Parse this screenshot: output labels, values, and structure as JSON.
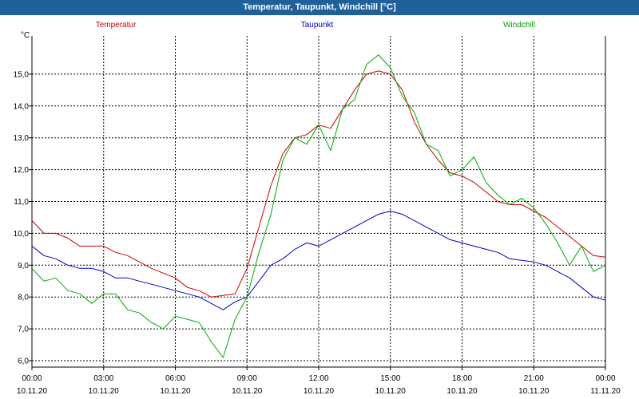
{
  "window": {
    "title": "Temperatur, Taupunkt, Windchill [°C]"
  },
  "chart_data": {
    "type": "line",
    "title": "Temperatur, Taupunkt, Windchill [°C]",
    "ylabel": "°C",
    "xlabel": "",
    "ylim": [
      5.8,
      16.2
    ],
    "xlim": [
      0,
      24
    ],
    "grid": true,
    "y_ticks": [
      "6,0",
      "7,0",
      "8,0",
      "9,0",
      "10,0",
      "11,0",
      "12,0",
      "13,0",
      "14,0",
      "15,0"
    ],
    "x_ticks": [
      {
        "time": "00:00",
        "date": "10.11.20"
      },
      {
        "time": "03:00",
        "date": "10.11.20"
      },
      {
        "time": "06:00",
        "date": "10.11.20"
      },
      {
        "time": "09:00",
        "date": "10.11.20"
      },
      {
        "time": "12:00",
        "date": "10.11.20"
      },
      {
        "time": "15:00",
        "date": "10.11.20"
      },
      {
        "time": "18:00",
        "date": "10.11.20"
      },
      {
        "time": "21:00",
        "date": "10.11.20"
      },
      {
        "time": "00:00",
        "date": "11.11.20"
      }
    ],
    "series": [
      {
        "name": "Temperatur",
        "color": "#cc0000",
        "legend": "left",
        "x": [
          0,
          0.5,
          1,
          1.5,
          2,
          2.5,
          3,
          3.5,
          4,
          4.5,
          5,
          5.5,
          6,
          6.5,
          7,
          7.5,
          8,
          8.5,
          9,
          9.5,
          10,
          10.5,
          11,
          11.5,
          12,
          12.5,
          13,
          13.5,
          14,
          14.5,
          15,
          15.5,
          16,
          16.5,
          17,
          17.5,
          18,
          18.5,
          19,
          19.5,
          20,
          20.5,
          21,
          21.5,
          22,
          22.5,
          23,
          23.5,
          24
        ],
        "values": [
          10.4,
          10.0,
          10.0,
          9.85,
          9.6,
          9.6,
          9.6,
          9.4,
          9.3,
          9.1,
          8.9,
          8.75,
          8.6,
          8.3,
          8.2,
          8.0,
          8.05,
          8.1,
          8.9,
          10.2,
          11.5,
          12.5,
          13.0,
          13.1,
          13.4,
          13.3,
          13.9,
          14.5,
          15.0,
          15.1,
          15.0,
          14.5,
          13.5,
          12.8,
          12.3,
          11.9,
          11.8,
          11.6,
          11.3,
          11.0,
          10.9,
          10.9,
          10.7,
          10.5,
          10.2,
          9.9,
          9.6,
          9.3,
          9.25
        ]
      },
      {
        "name": "Taupunkt",
        "color": "#0000cc",
        "legend": "center",
        "x": [
          0,
          0.5,
          1,
          1.5,
          2,
          2.5,
          3,
          3.5,
          4,
          4.5,
          5,
          5.5,
          6,
          6.5,
          7,
          7.5,
          8,
          8.5,
          9,
          9.5,
          10,
          10.5,
          11,
          11.5,
          12,
          12.5,
          13,
          13.5,
          14,
          14.5,
          15,
          15.5,
          16,
          16.5,
          17,
          17.5,
          18,
          18.5,
          19,
          19.5,
          20,
          20.5,
          21,
          21.5,
          22,
          22.5,
          23,
          23.5,
          24
        ],
        "values": [
          9.6,
          9.3,
          9.2,
          9.0,
          8.9,
          8.9,
          8.8,
          8.6,
          8.6,
          8.5,
          8.4,
          8.3,
          8.2,
          8.1,
          8.0,
          7.8,
          7.6,
          7.85,
          8.0,
          8.5,
          9.0,
          9.2,
          9.5,
          9.7,
          9.6,
          9.8,
          10.0,
          10.2,
          10.4,
          10.6,
          10.7,
          10.6,
          10.4,
          10.2,
          10.0,
          9.8,
          9.7,
          9.6,
          9.5,
          9.4,
          9.2,
          9.15,
          9.1,
          9.0,
          8.8,
          8.6,
          8.3,
          8.0,
          7.9
        ]
      },
      {
        "name": "Windchill",
        "color": "#00aa00",
        "legend": "right",
        "x": [
          0,
          0.5,
          1,
          1.5,
          2,
          2.5,
          3,
          3.5,
          4,
          4.5,
          5,
          5.5,
          6,
          6.5,
          7,
          7.5,
          8,
          8.5,
          9,
          9.5,
          10,
          10.5,
          11,
          11.5,
          12,
          12.5,
          13,
          13.5,
          14,
          14.5,
          15,
          15.5,
          16,
          16.5,
          17,
          17.5,
          18,
          18.5,
          19,
          19.5,
          20,
          20.5,
          21,
          21.5,
          22,
          22.5,
          23,
          23.5,
          24
        ],
        "values": [
          8.9,
          8.5,
          8.6,
          8.2,
          8.1,
          7.8,
          8.1,
          8.1,
          7.6,
          7.5,
          7.2,
          7.0,
          7.4,
          7.3,
          7.2,
          6.6,
          6.1,
          7.3,
          8.0,
          9.4,
          10.6,
          12.3,
          13.0,
          12.8,
          13.4,
          12.6,
          13.9,
          14.2,
          15.3,
          15.6,
          15.2,
          14.3,
          13.8,
          12.8,
          12.6,
          11.8,
          12.0,
          12.4,
          11.6,
          11.2,
          10.9,
          11.1,
          10.8,
          10.3,
          9.7,
          9.0,
          9.6,
          8.8,
          9.0
        ]
      }
    ]
  }
}
